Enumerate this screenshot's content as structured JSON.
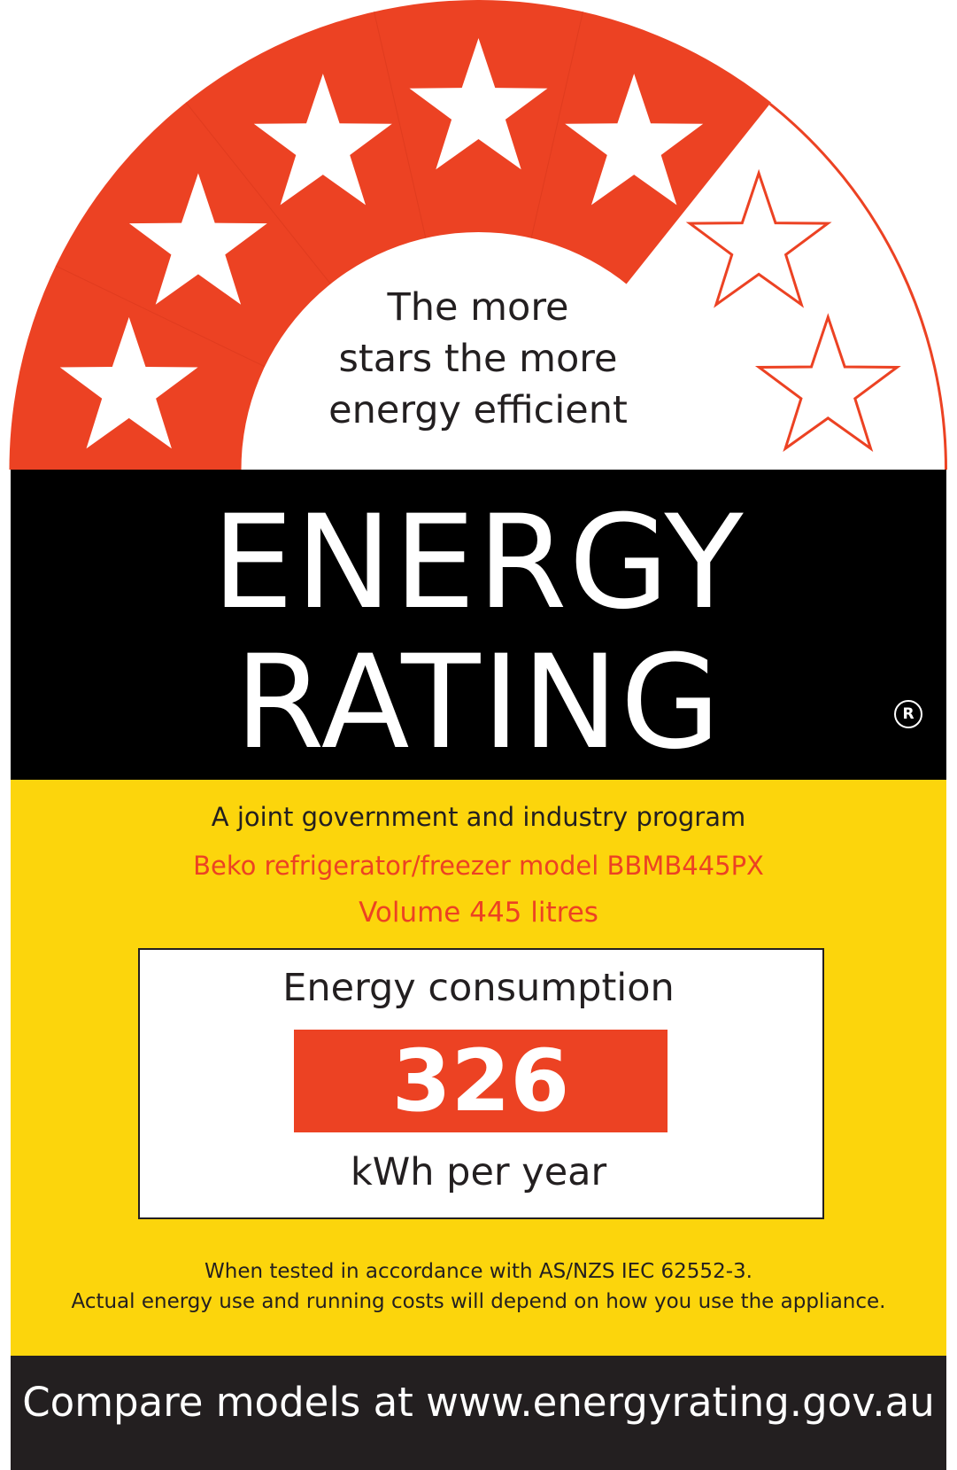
{
  "colors": {
    "red": "#ec4223",
    "black": "#000000",
    "yellow": "#fcd50c",
    "dark": "#231f20",
    "white": "#ffffff"
  },
  "rating": {
    "stars_total": 7,
    "stars_filled": 5
  },
  "tagline": [
    "The more",
    "stars the more",
    "energy efficient"
  ],
  "title": [
    "ENERGY",
    "RATING"
  ],
  "registered_mark": "R",
  "program_text": "A joint government and industry program",
  "model_text": "Beko refrigerator/freezer model BBMB445PX",
  "volume_text": "Volume 445 litres",
  "consumption": {
    "label": "Energy consumption",
    "value": "326",
    "unit": "kWh per year"
  },
  "notes": [
    "When tested in accordance with AS/NZS IEC 62552-3.",
    "Actual energy use and running costs will depend on how you use the appliance."
  ],
  "footer_text": "Compare models at www.energyrating.gov.au"
}
